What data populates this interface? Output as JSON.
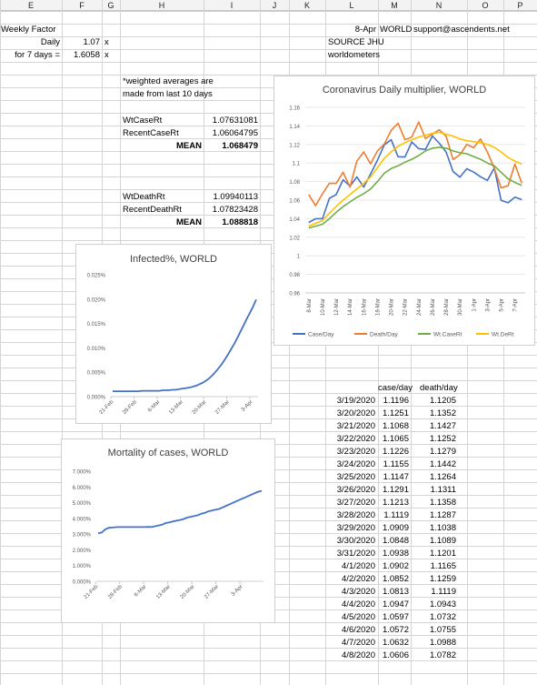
{
  "columns": [
    "E",
    "F",
    "G",
    "H",
    "I",
    "J",
    "K",
    "L",
    "M",
    "N",
    "O",
    "P"
  ],
  "cells": {
    "weekly_factor": "Weekly Factor",
    "daily_label": "Daily",
    "daily_value": "1.07",
    "daily_unit": "x",
    "for7_label": "for 7 days =",
    "for7_value": "1.6058",
    "for7_unit": "x",
    "note_line1": "*weighted averages are",
    "note_line2": "made from last 10 days",
    "wtcase_label": "WtCaseRt",
    "wtcase_value": "1.07631081",
    "recentcase_label": "RecentCaseRt",
    "recentcase_value": "1.06064795",
    "mean1_label": "MEAN",
    "mean1_value": "1.068479",
    "wtdeath_label": "WtDeathRt",
    "wtdeath_value": "1.09940113",
    "recentdeath_label": "RecentDeathRt",
    "recentdeath_value": "1.07823428",
    "mean2_label": "MEAN",
    "mean2_value": "1.088818",
    "date_label": "8-Apr",
    "world_label": "WORLD",
    "email": "support@ascendents.net",
    "source_label": "SOURCE JHU",
    "worldometers": "worldometers"
  },
  "table": {
    "headers": [
      "case/day",
      "death/day"
    ],
    "rows": [
      [
        "3/19/2020",
        "1.1196",
        "1.1205"
      ],
      [
        "3/20/2020",
        "1.1251",
        "1.1352"
      ],
      [
        "3/21/2020",
        "1.1068",
        "1.1427"
      ],
      [
        "3/22/2020",
        "1.1065",
        "1.1252"
      ],
      [
        "3/23/2020",
        "1.1226",
        "1.1279"
      ],
      [
        "3/24/2020",
        "1.1155",
        "1.1442"
      ],
      [
        "3/25/2020",
        "1.1147",
        "1.1264"
      ],
      [
        "3/26/2020",
        "1.1291",
        "1.1311"
      ],
      [
        "3/27/2020",
        "1.1213",
        "1.1358"
      ],
      [
        "3/28/2020",
        "1.1119",
        "1.1287"
      ],
      [
        "3/29/2020",
        "1.0909",
        "1.1038"
      ],
      [
        "3/30/2020",
        "1.0848",
        "1.1089"
      ],
      [
        "3/31/2020",
        "1.0938",
        "1.1201"
      ],
      [
        "4/1/2020",
        "1.0902",
        "1.1165"
      ],
      [
        "4/2/2020",
        "1.0852",
        "1.1259"
      ],
      [
        "4/3/2020",
        "1.0813",
        "1.1119"
      ],
      [
        "4/4/2020",
        "1.0947",
        "1.0943"
      ],
      [
        "4/5/2020",
        "1.0597",
        "1.0732"
      ],
      [
        "4/6/2020",
        "1.0572",
        "1.0755"
      ],
      [
        "4/7/2020",
        "1.0632",
        "1.0988"
      ],
      [
        "4/8/2020",
        "1.0606",
        "1.0782"
      ]
    ]
  },
  "chart_data": [
    {
      "type": "line",
      "title": "Coronavirus Daily multiplier, WORLD",
      "x": [
        "8-Mar",
        "9-Mar",
        "10-Mar",
        "11-Mar",
        "12-Mar",
        "13-Mar",
        "14-Mar",
        "15-Mar",
        "16-Mar",
        "17-Mar",
        "18-Mar",
        "19-Mar",
        "20-Mar",
        "21-Mar",
        "22-Mar",
        "23-Mar",
        "24-Mar",
        "25-Mar",
        "26-Mar",
        "27-Mar",
        "28-Mar",
        "29-Mar",
        "30-Mar",
        "31-Mar",
        "1-Apr",
        "2-Apr",
        "3-Apr",
        "4-Apr",
        "5-Apr",
        "6-Apr",
        "7-Apr",
        "8-Apr"
      ],
      "x_tick_labels": [
        "8-Mar",
        "10-Mar",
        "12-Mar",
        "14-Mar",
        "16-Mar",
        "18-Mar",
        "20-Mar",
        "22-Mar",
        "24-Mar",
        "26-Mar",
        "28-Mar",
        "30-Mar",
        "1-Apr",
        "3-Apr",
        "5-Apr",
        "7-Apr"
      ],
      "ylim": [
        0.96,
        1.16
      ],
      "y_ticks": [
        0.96,
        0.98,
        1,
        1.02,
        1.04,
        1.06,
        1.08,
        1.1,
        1.12,
        1.14,
        1.16
      ],
      "series": [
        {
          "name": "Case/Day",
          "color": "#4472c4",
          "values": [
            1.036,
            1.04,
            1.04,
            1.062,
            1.066,
            1.082,
            1.075,
            1.085,
            1.074,
            1.088,
            1.103,
            1.1196,
            1.1251,
            1.1068,
            1.1065,
            1.1226,
            1.1155,
            1.1147,
            1.1291,
            1.1213,
            1.1119,
            1.0909,
            1.0848,
            1.0938,
            1.0902,
            1.0852,
            1.0813,
            1.0947,
            1.0597,
            1.0572,
            1.0632,
            1.0606
          ]
        },
        {
          "name": "Death/Day",
          "color": "#ed7d31",
          "values": [
            1.066,
            1.054,
            1.067,
            1.078,
            1.078,
            1.09,
            1.074,
            1.102,
            1.112,
            1.099,
            1.113,
            1.1205,
            1.1352,
            1.1427,
            1.1252,
            1.1279,
            1.1442,
            1.1264,
            1.1311,
            1.1358,
            1.1287,
            1.1038,
            1.1089,
            1.1201,
            1.1165,
            1.1259,
            1.1119,
            1.0943,
            1.0732,
            1.0755,
            1.0988,
            1.0782
          ]
        },
        {
          "name": "Wt.CaseRt",
          "color": "#70ad47",
          "values": [
            1.03,
            1.032,
            1.034,
            1.04,
            1.047,
            1.053,
            1.058,
            1.063,
            1.067,
            1.072,
            1.08,
            1.089,
            1.094,
            1.097,
            1.101,
            1.104,
            1.108,
            1.113,
            1.116,
            1.117,
            1.116,
            1.113,
            1.111,
            1.11,
            1.107,
            1.104,
            1.1,
            1.097,
            1.09,
            1.083,
            1.079,
            1.076
          ]
        },
        {
          "name": "Wt.DeRt",
          "color": "#ffc000",
          "values": [
            1.032,
            1.035,
            1.038,
            1.046,
            1.053,
            1.06,
            1.066,
            1.072,
            1.078,
            1.085,
            1.095,
            1.105,
            1.112,
            1.118,
            1.122,
            1.125,
            1.128,
            1.13,
            1.132,
            1.133,
            1.131,
            1.129,
            1.126,
            1.124,
            1.123,
            1.122,
            1.12,
            1.117,
            1.112,
            1.106,
            1.102,
            1.099
          ]
        }
      ]
    },
    {
      "type": "line",
      "title": "Infected%, WORLD",
      "x_tick_labels": [
        "21-Feb",
        "28-Feb",
        "6-Mar",
        "13-Mar",
        "20-Mar",
        "27-Mar",
        "3-Apr"
      ],
      "ylim": [
        0,
        0.025
      ],
      "y_tick_labels": [
        "0.000%",
        "0.005%",
        "0.010%",
        "0.015%",
        "0.020%",
        "0.025%"
      ],
      "series": [
        {
          "name": "",
          "color": "#4472c4",
          "x_days": [
            0,
            4,
            7,
            10,
            13,
            16,
            19,
            22,
            25,
            28,
            30,
            32,
            34,
            36,
            38,
            40,
            42,
            44,
            46,
            48,
            50,
            52,
            54,
            56,
            58,
            60,
            62,
            64,
            66,
            68,
            70,
            72,
            74,
            76,
            78,
            80,
            82,
            84,
            86,
            88,
            90,
            92
          ],
          "values": [
            0.0011,
            0.0011,
            0.0011,
            0.0011,
            0.0011,
            0.0011,
            0.0012,
            0.0012,
            0.0012,
            0.0012,
            0.0012,
            0.0013,
            0.0013,
            0.0013,
            0.0014,
            0.0014,
            0.0015,
            0.0016,
            0.0017,
            0.0018,
            0.0019,
            0.0021,
            0.0023,
            0.0026,
            0.0029,
            0.0033,
            0.0038,
            0.0044,
            0.0051,
            0.0059,
            0.0067,
            0.0077,
            0.0087,
            0.0098,
            0.0109,
            0.0121,
            0.0134,
            0.0147,
            0.016,
            0.0172,
            0.0185,
            0.0199
          ]
        }
      ]
    },
    {
      "type": "line",
      "title": "Mortality of cases, WORLD",
      "x_tick_labels": [
        "21-Feb",
        "28-Feb",
        "6-Mar",
        "13-Mar",
        "20-Mar",
        "27-Mar",
        "3-Apr"
      ],
      "ylim": [
        0,
        7
      ],
      "y_tick_labels": [
        "0.000%",
        "1.000%",
        "2.000%",
        "3.000%",
        "4.000%",
        "5.000%",
        "6.000%",
        "7.000%"
      ],
      "series": [
        {
          "name": "",
          "color": "#4472c4",
          "x_days": [
            0,
            2,
            4,
            6,
            8,
            10,
            12,
            14,
            16,
            18,
            20,
            22,
            24,
            26,
            28,
            30,
            32,
            34,
            36,
            38,
            40,
            42,
            44,
            46,
            48,
            50,
            52,
            54,
            56,
            58,
            60,
            62,
            64,
            66,
            68,
            70,
            72,
            74,
            76,
            78,
            80,
            82,
            84,
            86,
            88,
            90,
            92
          ],
          "values": [
            3.05,
            3.1,
            3.3,
            3.4,
            3.42,
            3.44,
            3.45,
            3.45,
            3.45,
            3.45,
            3.45,
            3.45,
            3.45,
            3.45,
            3.46,
            3.45,
            3.5,
            3.55,
            3.6,
            3.7,
            3.75,
            3.8,
            3.85,
            3.9,
            3.95,
            4.05,
            4.1,
            4.15,
            4.2,
            4.3,
            4.35,
            4.45,
            4.5,
            4.55,
            4.6,
            4.7,
            4.8,
            4.9,
            5.0,
            5.1,
            5.2,
            5.3,
            5.4,
            5.5,
            5.6,
            5.7,
            5.75
          ]
        }
      ]
    }
  ]
}
